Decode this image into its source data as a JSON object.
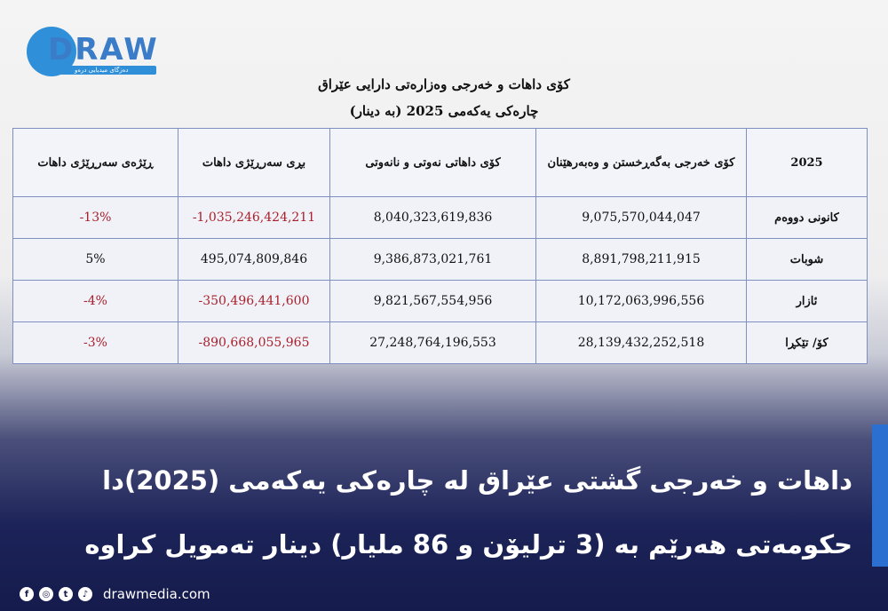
{
  "brand": {
    "logo_text": "DRAW",
    "logo_subtitle": "دەزگای میدیایی درەو",
    "website": "drawmedia.com"
  },
  "document": {
    "title_line1": "کۆی داهات و خەرجی وەزارەتی دارایی عێراق",
    "title_line2": "چارەکی یەکەمی 2025 (بە دینار)"
  },
  "table": {
    "headers": {
      "period": "2025",
      "expenses": "کۆی خەرجی بەگەڕخستن و وەبەرهێنان",
      "revenue": "کۆی داهاتی نەوتی و نانەوتی",
      "deficit_amount": "بڕی سەرڕێژی داهات",
      "deficit_ratio": "ڕێژەی سەرڕێژی داهات"
    },
    "rows": [
      {
        "period": "کانونی دووەم",
        "expenses": "9,075,570,044,047",
        "revenue": "8,040,323,619,836",
        "deficit_amount": "-1,035,246,424,211",
        "deficit_ratio": "-13%"
      },
      {
        "period": "شوبات",
        "expenses": "8,891,798,211,915",
        "revenue": "9,386,873,021,761",
        "deficit_amount": "495,074,809,846",
        "deficit_ratio": "5%"
      },
      {
        "period": "ئازار",
        "expenses": "10,172,063,996,556",
        "revenue": "9,821,567,554,956",
        "deficit_amount": "-350,496,441,600",
        "deficit_ratio": "-4%"
      },
      {
        "period": "کۆ/ تێکڕا",
        "expenses": "28,139,432,252,518",
        "revenue": "27,248,764,196,553",
        "deficit_amount": "-890,668,055,965",
        "deficit_ratio": "-3%"
      }
    ]
  },
  "headline": {
    "line1": "داهات و خەرجی گشتی عێراق لە چارەکی یەکەمی (2025)دا",
    "line2": "حکومەتی هەرێم بە (3 ترلیۆن و 86 ملیار) دینار تەمویل کراوە"
  },
  "social_icons": [
    "facebook-icon",
    "instagram-icon",
    "twitter-icon",
    "tiktok-icon"
  ],
  "colors": {
    "accent": "#2b6fd1",
    "negative": "#a8202b",
    "table_border": "#7f8fbf",
    "navy": "#151b4c"
  }
}
